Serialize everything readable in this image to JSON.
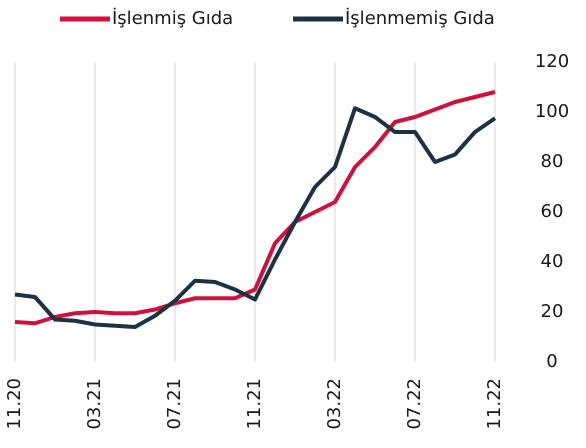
{
  "chart_data": {
    "type": "line",
    "categories": [
      "11.20",
      null,
      null,
      null,
      "03.21",
      null,
      null,
      null,
      "07.21",
      null,
      null,
      null,
      "11.21",
      null,
      null,
      null,
      "03.22",
      null,
      null,
      null,
      "07.22",
      null,
      null,
      null,
      "11.22"
    ],
    "series": [
      {
        "name": "İşlenmiş Gıda",
        "color": "#d0103a",
        "values": [
          16,
          15.5,
          18,
          19.5,
          20,
          19.5,
          19.5,
          21,
          23.5,
          25.5,
          25.5,
          25.5,
          29,
          47.5,
          56,
          60,
          64,
          78,
          86,
          96,
          98,
          101,
          104,
          106,
          108
        ]
      },
      {
        "name": "İşlenmemiş Gıda",
        "color": "#1c3144",
        "values": [
          27,
          26,
          17,
          16.5,
          15,
          14.5,
          14,
          18.5,
          24.5,
          32.5,
          32,
          29,
          25,
          41,
          56,
          70,
          78,
          101.5,
          98,
          92,
          92,
          80,
          83,
          92,
          97.5
        ]
      }
    ],
    "ylim": [
      0,
      120
    ],
    "yticks": [
      0,
      20,
      40,
      60,
      80,
      100,
      120
    ],
    "legend": "top",
    "grid": true
  }
}
